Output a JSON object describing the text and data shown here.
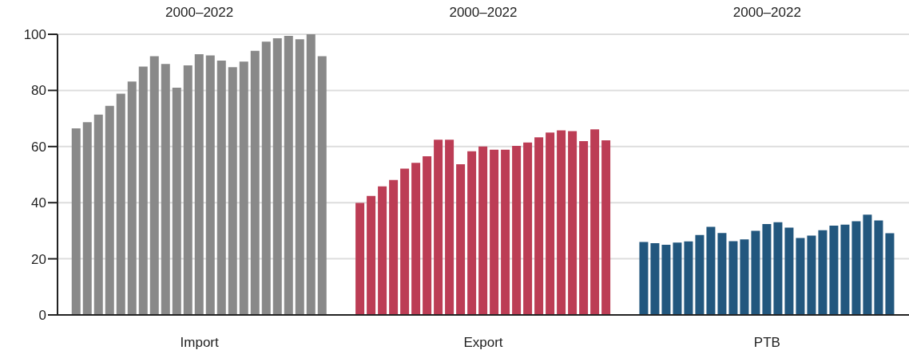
{
  "chart_data": {
    "type": "bar",
    "categories": [
      "Import",
      "Export",
      "PTB"
    ],
    "annotations": [
      "2000–2022",
      "2000–2022",
      "2000–2022"
    ],
    "series": [
      {
        "colors": [
          "#898989",
          "#bc3d55",
          "#22577e"
        ],
        "values": [
          66.5,
          39.9,
          26.0
        ]
      },
      {
        "colors": [
          "#898989",
          "#bc3d55",
          "#22577e"
        ],
        "values": [
          68.7,
          42.4,
          25.6
        ]
      },
      {
        "colors": [
          "#898989",
          "#bc3d55",
          "#22577e"
        ],
        "values": [
          71.4,
          45.8,
          25.0
        ]
      },
      {
        "colors": [
          "#898989",
          "#bc3d55",
          "#22577e"
        ],
        "values": [
          74.5,
          48.1,
          25.8
        ]
      },
      {
        "colors": [
          "#898989",
          "#bc3d55",
          "#22577e"
        ],
        "values": [
          78.8,
          52.1,
          26.2
        ]
      },
      {
        "colors": [
          "#898989",
          "#bc3d55",
          "#22577e"
        ],
        "values": [
          83.2,
          54.2,
          28.5
        ]
      },
      {
        "colors": [
          "#898989",
          "#bc3d55",
          "#22577e"
        ],
        "values": [
          88.5,
          56.5,
          31.4
        ]
      },
      {
        "colors": [
          "#898989",
          "#bc3d55",
          "#22577e"
        ],
        "values": [
          92.2,
          62.4,
          29.2
        ]
      },
      {
        "colors": [
          "#898989",
          "#bc3d55",
          "#22577e"
        ],
        "values": [
          89.4,
          62.4,
          26.3
        ]
      },
      {
        "colors": [
          "#898989",
          "#bc3d55",
          "#22577e"
        ],
        "values": [
          81.0,
          53.7,
          26.9
        ]
      },
      {
        "colors": [
          "#898989",
          "#bc3d55",
          "#22577e"
        ],
        "values": [
          88.9,
          58.3,
          30.0
        ]
      },
      {
        "colors": [
          "#898989",
          "#bc3d55",
          "#22577e"
        ],
        "values": [
          92.9,
          60.0,
          32.4
        ]
      },
      {
        "colors": [
          "#898989",
          "#bc3d55",
          "#22577e"
        ],
        "values": [
          92.5,
          58.9,
          33.0
        ]
      },
      {
        "colors": [
          "#898989",
          "#bc3d55",
          "#22577e"
        ],
        "values": [
          90.6,
          58.9,
          31.1
        ]
      },
      {
        "colors": [
          "#898989",
          "#bc3d55",
          "#22577e"
        ],
        "values": [
          88.3,
          60.2,
          27.4
        ]
      },
      {
        "colors": [
          "#898989",
          "#bc3d55",
          "#22577e"
        ],
        "values": [
          90.3,
          61.4,
          28.3
        ]
      },
      {
        "colors": [
          "#898989",
          "#bc3d55",
          "#22577e"
        ],
        "values": [
          94.1,
          63.3,
          30.2
        ]
      },
      {
        "colors": [
          "#898989",
          "#bc3d55",
          "#22577e"
        ],
        "values": [
          97.4,
          65.0,
          31.8
        ]
      },
      {
        "colors": [
          "#898989",
          "#bc3d55",
          "#22577e"
        ],
        "values": [
          98.6,
          65.8,
          32.2
        ]
      },
      {
        "colors": [
          "#898989",
          "#bc3d55",
          "#22577e"
        ],
        "values": [
          99.4,
          65.5,
          33.4
        ]
      },
      {
        "colors": [
          "#898989",
          "#bc3d55",
          "#22577e"
        ],
        "values": [
          98.2,
          61.9,
          35.7
        ]
      },
      {
        "colors": [
          "#898989",
          "#bc3d55",
          "#22577e"
        ],
        "values": [
          100,
          66.1,
          33.7
        ]
      },
      {
        "colors": [
          "#898989",
          "#bc3d55",
          "#22577e"
        ],
        "values": [
          92.2,
          62.2,
          29.1
        ]
      }
    ],
    "ylim": [
      0,
      100
    ],
    "yticks": [
      0,
      20,
      40,
      60,
      80,
      100
    ],
    "grid": "y"
  }
}
